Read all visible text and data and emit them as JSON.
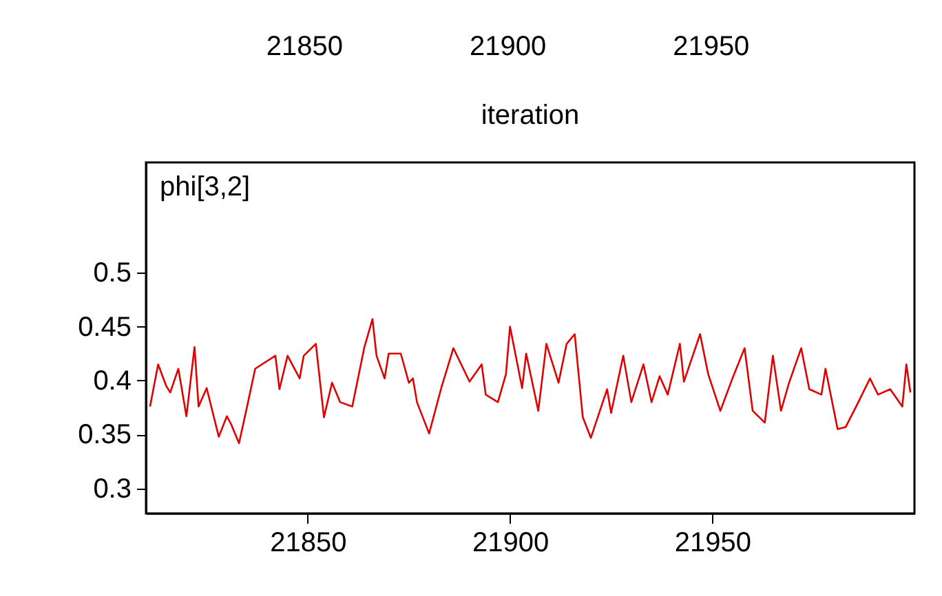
{
  "chart_data": [
    {
      "type": "other",
      "xlabel": "iteration",
      "annotations": [
        "21850",
        "21900",
        "21950"
      ]
    },
    {
      "type": "line",
      "title": "phi[3,2]",
      "xlim": [
        21810,
        22000
      ],
      "xticks": [
        21850,
        21900,
        21950
      ],
      "ylim": [
        0.277,
        0.602
      ],
      "yticks": [
        0.3,
        0.35,
        0.4,
        0.45,
        0.5
      ],
      "grid": false,
      "marker": "none",
      "line_style": "solid",
      "series": [
        {
          "color": "#e00000",
          "x": [
            21811,
            21813,
            21815,
            21816,
            21818,
            21820,
            21822,
            21823,
            21825,
            21828,
            21830,
            21831,
            21833,
            21835,
            21837,
            21842,
            21843,
            21845,
            21848,
            21849,
            21852,
            21854,
            21856,
            21858,
            21861,
            21864,
            21866,
            21867,
            21869,
            21870,
            21873,
            21875,
            21876,
            21877,
            21880,
            21883,
            21886,
            21890,
            21893,
            21894,
            21897,
            21899,
            21900,
            21903,
            21904,
            21907,
            21909,
            21912,
            21914,
            21916,
            21918,
            21920,
            21924,
            21925,
            21928,
            21930,
            21933,
            21935,
            21937,
            21939,
            21942,
            21943,
            21947,
            21949,
            21952,
            21955,
            21958,
            21960,
            21963,
            21965,
            21967,
            21969,
            21972,
            21974,
            21977,
            21978,
            21981,
            21983,
            21986,
            21989,
            21991,
            21994,
            21997,
            21998,
            21999
          ],
          "values": [
            0.376,
            0.415,
            0.395,
            0.389,
            0.411,
            0.367,
            0.431,
            0.376,
            0.393,
            0.348,
            0.367,
            0.36,
            0.342,
            0.376,
            0.411,
            0.423,
            0.392,
            0.423,
            0.402,
            0.423,
            0.434,
            0.366,
            0.398,
            0.38,
            0.376,
            0.431,
            0.457,
            0.423,
            0.402,
            0.425,
            0.425,
            0.398,
            0.402,
            0.38,
            0.351,
            0.393,
            0.43,
            0.399,
            0.415,
            0.387,
            0.38,
            0.406,
            0.45,
            0.393,
            0.425,
            0.372,
            0.434,
            0.398,
            0.434,
            0.443,
            0.366,
            0.347,
            0.392,
            0.37,
            0.423,
            0.38,
            0.415,
            0.38,
            0.404,
            0.387,
            0.434,
            0.399,
            0.443,
            0.406,
            0.372,
            0.402,
            0.43,
            0.372,
            0.361,
            0.423,
            0.372,
            0.398,
            0.43,
            0.392,
            0.387,
            0.411,
            0.355,
            0.357,
            0.379,
            0.402,
            0.387,
            0.392,
            0.376,
            0.415,
            0.389
          ]
        }
      ]
    }
  ]
}
